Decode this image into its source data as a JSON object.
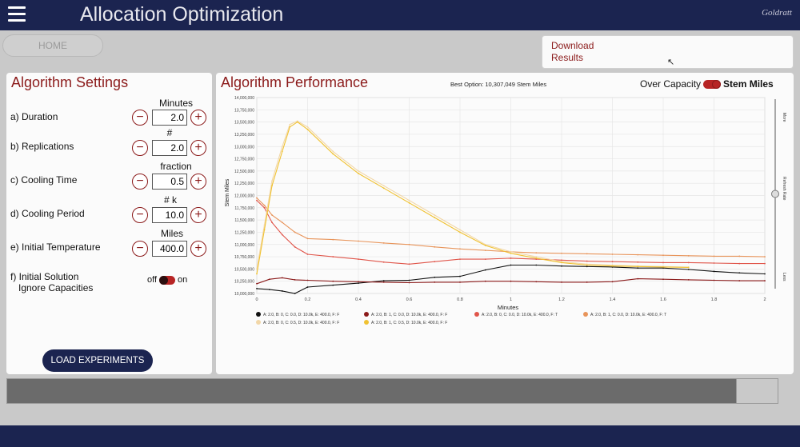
{
  "header": {
    "title": "Allocation Optimization",
    "brand": "Goldratt"
  },
  "nav": {
    "home_label": "HOME"
  },
  "download": {
    "label": "Download Results"
  },
  "settings": {
    "title": "Algorithm Settings",
    "rows": [
      {
        "label": "a) Duration",
        "unit": "Minutes",
        "value": "2.0"
      },
      {
        "label": "b) Replications",
        "unit": "#",
        "value": "2.0"
      },
      {
        "label": "c) Cooling Time",
        "unit": "fraction",
        "value": "0.5"
      },
      {
        "label": "d) Cooling Period",
        "unit": "# k",
        "value": "10.0"
      },
      {
        "label": "e) Initial Temperature",
        "unit": "Miles",
        "value": "400.0"
      }
    ],
    "initial_solution": {
      "label_line1": "f) Initial Solution",
      "label_line2": "Ignore Capacities",
      "off_label": "off",
      "on_label": "on",
      "state": "off"
    },
    "load_button": "LOAD EXPERIMENTS"
  },
  "performance": {
    "title": "Algorithm Performance",
    "best_option": "Best Option: 10,307,049 Stem Miles",
    "toggle_left": "Over Capacity",
    "toggle_right": "Stem Miles",
    "slider": {
      "top_label": "More",
      "mid_label": "Refresh Rate",
      "bottom_label": "Less",
      "level": 0.5
    }
  },
  "chart_data": {
    "type": "line",
    "title": "",
    "xlabel": "Minutes",
    "ylabel": "Stem Miles",
    "xlim": [
      0,
      2
    ],
    "ylim": [
      10000000,
      14000000
    ],
    "x_ticks": [
      "0",
      "0.2",
      "0.4",
      "0.6",
      "0.8",
      "1",
      "1.2",
      "1.4",
      "1.6",
      "1.8",
      "2"
    ],
    "y_ticks": [
      "10,000,000",
      "10,250,000",
      "10,500,000",
      "10,750,000",
      "11,000,000",
      "11,250,000",
      "11,500,000",
      "11,750,000",
      "12,000,000",
      "12,250,000",
      "12,500,000",
      "12,750,000",
      "13,000,000",
      "13,250,000",
      "13,500,000",
      "13,750,000",
      "14,000,000"
    ],
    "grid": true,
    "legend_position": "bottom",
    "series": [
      {
        "name": "A: 2.0, B: 0, C: 0.0, D: 10.0k, E: 400.0, F: F",
        "color": "#111111",
        "points": [
          [
            0,
            10100000
          ],
          [
            0.05,
            10080000
          ],
          [
            0.1,
            10050000
          ],
          [
            0.15,
            10000000
          ],
          [
            0.2,
            10130000
          ],
          [
            0.3,
            10170000
          ],
          [
            0.4,
            10210000
          ],
          [
            0.5,
            10260000
          ],
          [
            0.6,
            10270000
          ],
          [
            0.7,
            10330000
          ],
          [
            0.8,
            10350000
          ],
          [
            0.9,
            10480000
          ],
          [
            1.0,
            10580000
          ],
          [
            1.1,
            10580000
          ],
          [
            1.2,
            10560000
          ],
          [
            1.3,
            10550000
          ],
          [
            1.4,
            10540000
          ],
          [
            1.5,
            10520000
          ],
          [
            1.6,
            10520000
          ],
          [
            1.7,
            10490000
          ],
          [
            1.8,
            10450000
          ],
          [
            1.9,
            10420000
          ],
          [
            2.0,
            10400000
          ]
        ]
      },
      {
        "name": "A: 2.0, B: 1, C: 0.0, D: 10.0k, E: 400.0, F: F",
        "color": "#8b1a1a",
        "points": [
          [
            0,
            10200000
          ],
          [
            0.05,
            10290000
          ],
          [
            0.1,
            10320000
          ],
          [
            0.15,
            10280000
          ],
          [
            0.2,
            10270000
          ],
          [
            0.3,
            10250000
          ],
          [
            0.4,
            10240000
          ],
          [
            0.5,
            10230000
          ],
          [
            0.6,
            10220000
          ],
          [
            0.7,
            10230000
          ],
          [
            0.8,
            10230000
          ],
          [
            0.9,
            10250000
          ],
          [
            1.0,
            10250000
          ],
          [
            1.1,
            10240000
          ],
          [
            1.2,
            10230000
          ],
          [
            1.3,
            10230000
          ],
          [
            1.4,
            10240000
          ],
          [
            1.5,
            10300000
          ],
          [
            1.6,
            10290000
          ],
          [
            1.7,
            10280000
          ],
          [
            1.8,
            10270000
          ],
          [
            1.9,
            10260000
          ],
          [
            2.0,
            10260000
          ]
        ]
      },
      {
        "name": "A: 2.0, B: 0, C: 0.0, D: 10.0k, E: 400.0, F: T",
        "color": "#e0554a",
        "points": [
          [
            0,
            11900000
          ],
          [
            0.03,
            11750000
          ],
          [
            0.06,
            11450000
          ],
          [
            0.1,
            11200000
          ],
          [
            0.15,
            10950000
          ],
          [
            0.2,
            10800000
          ],
          [
            0.3,
            10750000
          ],
          [
            0.4,
            10700000
          ],
          [
            0.5,
            10640000
          ],
          [
            0.6,
            10600000
          ],
          [
            0.7,
            10650000
          ],
          [
            0.8,
            10700000
          ],
          [
            0.9,
            10700000
          ],
          [
            1.0,
            10720000
          ],
          [
            1.1,
            10700000
          ],
          [
            1.2,
            10680000
          ],
          [
            1.3,
            10660000
          ],
          [
            1.4,
            10650000
          ],
          [
            1.5,
            10640000
          ],
          [
            1.6,
            10630000
          ],
          [
            1.7,
            10630000
          ],
          [
            1.8,
            10620000
          ],
          [
            1.9,
            10610000
          ],
          [
            2.0,
            10610000
          ]
        ]
      },
      {
        "name": "A: 2.0, B: 1, C: 0.0, D: 10.0k, E: 400.0, F: T",
        "color": "#e8945a",
        "points": [
          [
            0,
            11950000
          ],
          [
            0.03,
            11800000
          ],
          [
            0.06,
            11600000
          ],
          [
            0.1,
            11450000
          ],
          [
            0.15,
            11250000
          ],
          [
            0.2,
            11120000
          ],
          [
            0.3,
            11100000
          ],
          [
            0.4,
            11070000
          ],
          [
            0.5,
            11030000
          ],
          [
            0.6,
            11000000
          ],
          [
            0.7,
            10950000
          ],
          [
            0.8,
            10910000
          ],
          [
            0.9,
            10880000
          ],
          [
            1.0,
            10850000
          ],
          [
            1.1,
            10830000
          ],
          [
            1.2,
            10820000
          ],
          [
            1.3,
            10810000
          ],
          [
            1.4,
            10800000
          ],
          [
            1.5,
            10790000
          ],
          [
            1.6,
            10780000
          ],
          [
            1.7,
            10770000
          ],
          [
            1.8,
            10760000
          ],
          [
            1.9,
            10760000
          ],
          [
            2.0,
            10750000
          ]
        ]
      },
      {
        "name": "A: 2.0, B: 0, C: 0.5, D: 10.0k, E: 400.0, F: F",
        "color": "#f2d7a8",
        "points": [
          [
            0,
            10500000
          ],
          [
            0.03,
            11400000
          ],
          [
            0.06,
            12300000
          ],
          [
            0.1,
            13000000
          ],
          [
            0.13,
            13450000
          ],
          [
            0.16,
            13520000
          ],
          [
            0.2,
            13400000
          ],
          [
            0.3,
            12900000
          ],
          [
            0.4,
            12500000
          ],
          [
            0.5,
            12200000
          ],
          [
            0.6,
            11900000
          ],
          [
            0.7,
            11600000
          ],
          [
            0.8,
            11300000
          ],
          [
            0.9,
            11000000
          ],
          [
            1.0,
            10850000
          ],
          [
            1.1,
            10750000
          ],
          [
            1.2,
            10650000
          ],
          [
            1.3,
            10600000
          ],
          [
            1.4,
            10580000
          ],
          [
            1.5,
            10560000
          ],
          [
            1.6,
            10550000
          ],
          [
            1.7,
            10540000
          ]
        ]
      },
      {
        "name": "A: 2.0, B: 1, C: 0.5, D: 10.0k, E: 400.0, F: F",
        "color": "#f0c232",
        "points": [
          [
            0,
            10400000
          ],
          [
            0.03,
            11300000
          ],
          [
            0.06,
            12200000
          ],
          [
            0.1,
            12900000
          ],
          [
            0.13,
            13400000
          ],
          [
            0.16,
            13500000
          ],
          [
            0.2,
            13350000
          ],
          [
            0.3,
            12850000
          ],
          [
            0.4,
            12450000
          ],
          [
            0.5,
            12150000
          ],
          [
            0.6,
            11850000
          ],
          [
            0.7,
            11550000
          ],
          [
            0.8,
            11250000
          ],
          [
            0.9,
            10980000
          ],
          [
            1.0,
            10820000
          ],
          [
            1.1,
            10720000
          ],
          [
            1.2,
            10630000
          ],
          [
            1.3,
            10580000
          ],
          [
            1.4,
            10560000
          ],
          [
            1.5,
            10550000
          ],
          [
            1.6,
            10540000
          ],
          [
            1.7,
            10530000
          ]
        ]
      }
    ]
  },
  "colors": {
    "navy": "#1b2450",
    "accent": "#8b1a1a"
  }
}
